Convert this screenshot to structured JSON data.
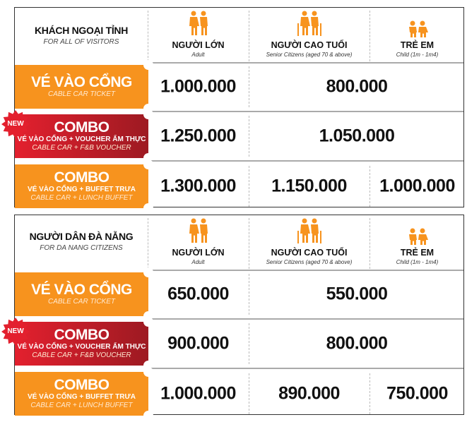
{
  "colors": {
    "orange": "#f7931e",
    "red": "#e3202e",
    "dark_red": "#9d1a22"
  },
  "columns": [
    {
      "vi": "NGƯỜI LỚN",
      "en": "Adult",
      "icon": "adult-couple-icon"
    },
    {
      "vi": "NGƯỜI CAO TUỔI",
      "en": "Senior Citizens (aged 70 & above)",
      "icon": "senior-couple-icon"
    },
    {
      "vi": "TRẺ EM",
      "en": "Child (1m - 1m4)",
      "icon": "children-icon"
    }
  ],
  "badge": "NEW",
  "tables": [
    {
      "title": "KHÁCH NGOẠI TỈNH",
      "subtitle": "FOR ALL OF VISITORS",
      "rows": [
        {
          "big": "VÉ VÀO CỔNG",
          "sub": "",
          "en": "CABLE CAR TICKET",
          "style": "orange",
          "new": false,
          "prices": [
            "1.000.000",
            "800.000"
          ]
        },
        {
          "big": "COMBO",
          "sub": "VÉ VÀO CỔNG + VOUCHER ẨM THỰC",
          "en": "CABLE CAR + F&B VOUCHER",
          "style": "red",
          "new": true,
          "prices": [
            "1.250.000",
            "1.050.000"
          ]
        },
        {
          "big": "COMBO",
          "sub": "VÉ VÀO CỔNG + BUFFET TRƯA",
          "en": "CABLE CAR + LUNCH BUFFET",
          "style": "orange",
          "new": false,
          "prices": [
            "1.300.000",
            "1.150.000",
            "1.000.000"
          ]
        }
      ]
    },
    {
      "title": "NGƯỜI DÂN ĐÀ NẴNG",
      "subtitle": "FOR DA NANG CITIZENS",
      "rows": [
        {
          "big": "VÉ VÀO CỔNG",
          "sub": "",
          "en": "CABLE CAR TICKET",
          "style": "orange",
          "new": false,
          "prices": [
            "650.000",
            "550.000"
          ]
        },
        {
          "big": "COMBO",
          "sub": "VÉ VÀO CỔNG + VOUCHER ẨM THỰC",
          "en": "CABLE CAR + F&B VOUCHER",
          "style": "red",
          "new": true,
          "prices": [
            "900.000",
            "800.000"
          ]
        },
        {
          "big": "COMBO",
          "sub": "VÉ VÀO CỔNG + BUFFET TRƯA",
          "en": "CABLE CAR + LUNCH BUFFET",
          "style": "orange",
          "new": false,
          "prices": [
            "1.000.000",
            "890.000",
            "750.000"
          ]
        }
      ]
    }
  ]
}
